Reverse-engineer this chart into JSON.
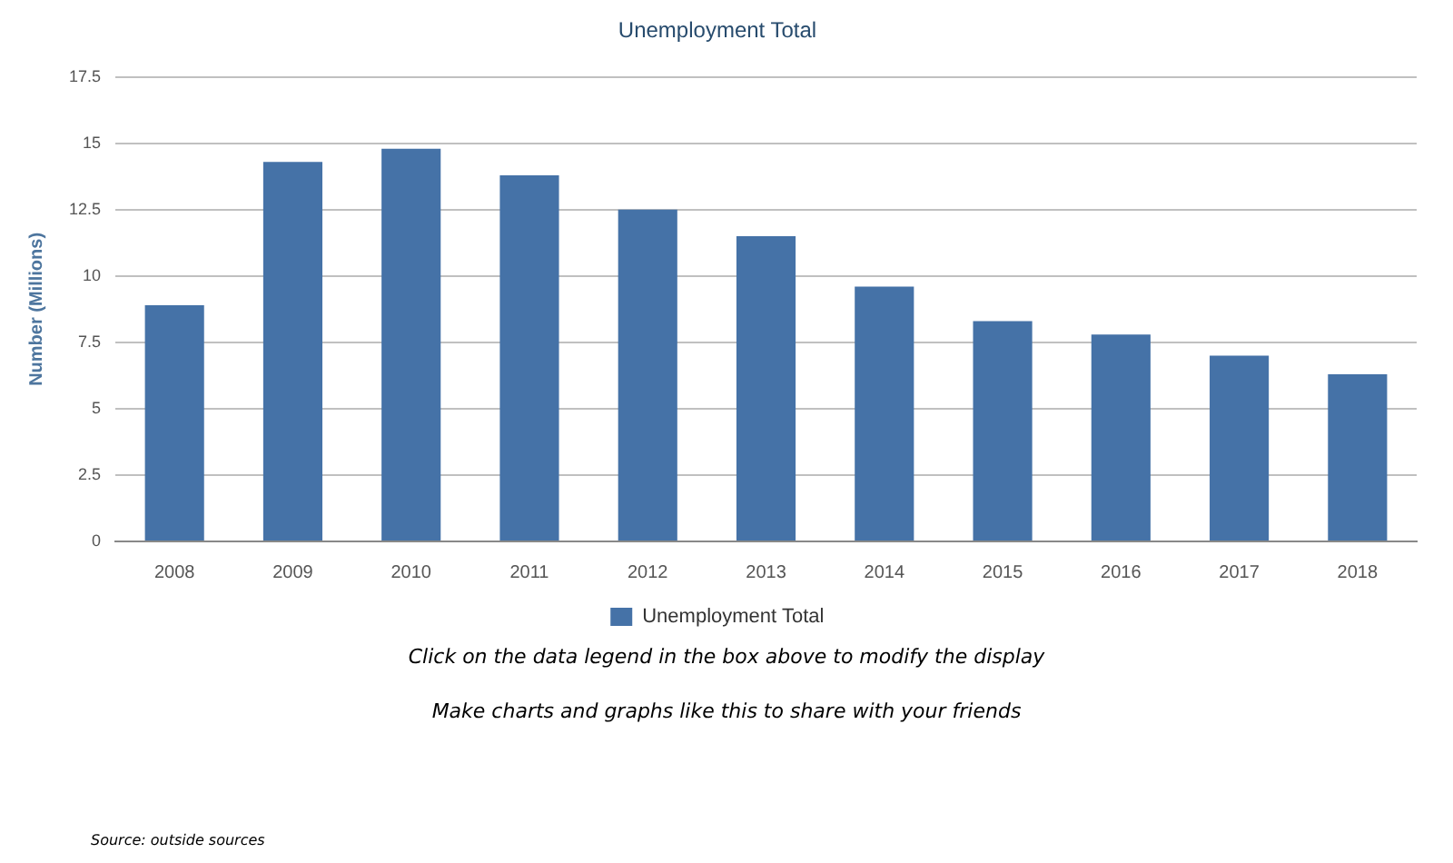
{
  "chart_data": {
    "type": "bar",
    "title": "Unemployment Total",
    "ylabel": "Number (Millions)",
    "categories": [
      "2008",
      "2009",
      "2010",
      "2011",
      "2012",
      "2013",
      "2014",
      "2015",
      "2016",
      "2017",
      "2018"
    ],
    "series": [
      {
        "name": "Unemployment Total",
        "color": "#4572a7",
        "values": [
          8.9,
          14.3,
          14.8,
          13.8,
          12.5,
          11.5,
          9.6,
          8.3,
          7.8,
          7.0,
          6.3
        ]
      }
    ],
    "ylim": [
      0,
      17.5
    ],
    "yticks": [
      0,
      2.5,
      5,
      7.5,
      10,
      12.5,
      15,
      17.5
    ],
    "grid": "y",
    "legend": "bottom",
    "annotations": [
      "Click on the data legend in the box above to modify the display",
      "Make charts and graphs like this to share with your friends",
      "Source: outside sources"
    ]
  }
}
